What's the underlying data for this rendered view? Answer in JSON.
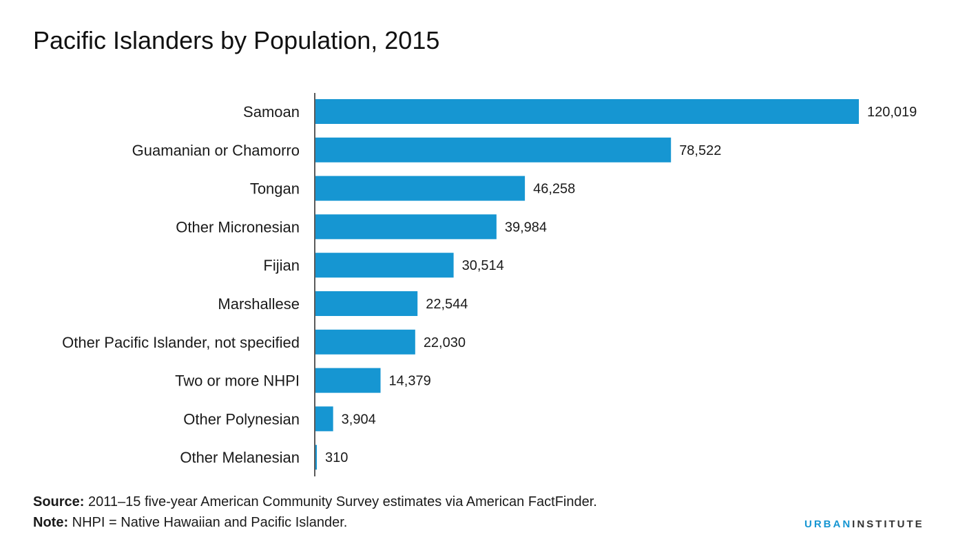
{
  "chart_data": {
    "type": "bar",
    "orientation": "horizontal",
    "title": "Pacific Islanders by Population, 2015",
    "categories": [
      "Samoan",
      "Guamanian or Chamorro",
      "Tongan",
      "Other Micronesian",
      "Fijian",
      "Marshallese",
      "Other Pacific Islander, not specified",
      "Two or more NHPI",
      "Other Polynesian",
      "Other Melanesian"
    ],
    "values": [
      120019,
      78522,
      46258,
      39984,
      30514,
      22544,
      22030,
      14379,
      3904,
      310
    ],
    "value_labels": [
      "120,019",
      "78,522",
      "46,258",
      "39,984",
      "30,514",
      "22,544",
      "22,030",
      "14,379",
      "3,904",
      "310"
    ],
    "xlim": [
      0,
      120019
    ],
    "xlabel": "",
    "ylabel": "",
    "grid": false,
    "bar_color": "#1696d2"
  },
  "footer": {
    "source_label": "Source:",
    "source_text": "2011–15 five-year American Community Survey estimates via American FactFinder.",
    "note_label": "Note:",
    "note_text": "NHPI = Native Hawaiian and Pacific Islander."
  },
  "logo": {
    "urban": "URBAN",
    "institute": "INSTITUTE"
  }
}
